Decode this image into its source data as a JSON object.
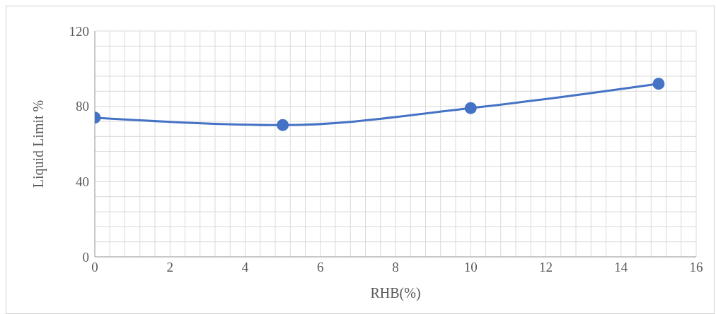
{
  "chart_data": {
    "type": "line",
    "xlabel": "RHB(%)",
    "ylabel": "Liquid Limit %",
    "x": [
      0,
      5,
      10,
      15
    ],
    "series": [
      {
        "color": "#4472c4",
        "values": [
          74,
          70,
          79,
          92
        ]
      }
    ],
    "xlim": [
      0,
      16
    ],
    "xticks": [
      0,
      2,
      4,
      6,
      8,
      10,
      12,
      14,
      16
    ],
    "ylim": [
      0,
      120
    ],
    "yticks": [
      0,
      40,
      80,
      120
    ],
    "grid": true,
    "marker": "circle",
    "line_style": "solid"
  }
}
